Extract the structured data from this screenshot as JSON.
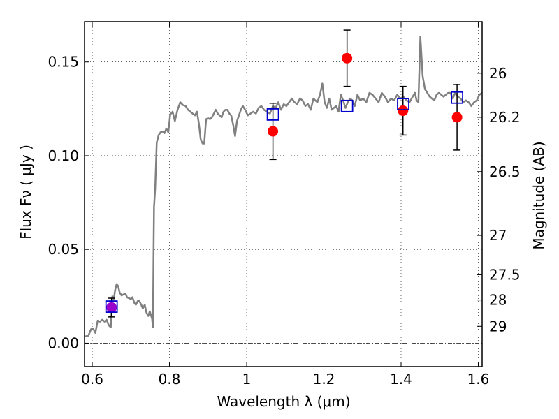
{
  "chart_data": {
    "type": "scatter",
    "title": "",
    "xlabel": "Wavelength  λ (μm)",
    "ylabel": "Flux  Fν  ( μJy )",
    "y2label": "Magnitude (AB)",
    "xlim": [
      0.58,
      1.61
    ],
    "ylim": [
      -0.0125,
      0.1715
    ],
    "grid": true,
    "x_ticks": [
      0.6,
      0.8,
      1.0,
      1.2,
      1.4,
      1.6
    ],
    "x_tick_labels": [
      "0.6",
      "0.8",
      "1",
      "1.2",
      "1.4",
      "1.6"
    ],
    "y_ticks": [
      0.0,
      0.05,
      0.1,
      0.15
    ],
    "y_tick_labels": [
      "0.00",
      "0.05",
      "0.10",
      "0.15"
    ],
    "y2_tick_labels": [
      "26",
      "26.2",
      "26.5",
      "27",
      "27.5",
      "28",
      "29"
    ],
    "colors": {
      "spectrum": "#808080",
      "observed": "#ff0000",
      "model": "#0000cc",
      "errorbar": "#000000",
      "purple": "#9900cc"
    },
    "spectrum": {
      "x": [
        0.58,
        0.59,
        0.597,
        0.603,
        0.608,
        0.614,
        0.62,
        0.626,
        0.632,
        0.637,
        0.643,
        0.648,
        0.652,
        0.656,
        0.659,
        0.663,
        0.667,
        0.671,
        0.676,
        0.681,
        0.686,
        0.69,
        0.695,
        0.7,
        0.704,
        0.709,
        0.713,
        0.718,
        0.722,
        0.727,
        0.731,
        0.736,
        0.74,
        0.745,
        0.749,
        0.752,
        0.755,
        0.757,
        0.76,
        0.763,
        0.767,
        0.772,
        0.777,
        0.782,
        0.787,
        0.792,
        0.797,
        0.802,
        0.808,
        0.814,
        0.821,
        0.828,
        0.835,
        0.842,
        0.848,
        0.854,
        0.86,
        0.866,
        0.871,
        0.876,
        0.881,
        0.886,
        0.89,
        0.895,
        0.9,
        0.905,
        0.91,
        0.915,
        0.92,
        0.925,
        0.93,
        0.935,
        0.94,
        0.945,
        0.95,
        0.955,
        0.96,
        0.965,
        0.97,
        0.975,
        0.98,
        0.985,
        0.99,
        0.996,
        1.003,
        1.01,
        1.017,
        1.024,
        1.031,
        1.038,
        1.045,
        1.052,
        1.06,
        1.068,
        1.075,
        1.082,
        1.089,
        1.096,
        1.103,
        1.11,
        1.117,
        1.124,
        1.131,
        1.138,
        1.145,
        1.152,
        1.159,
        1.166,
        1.173,
        1.178,
        1.183,
        1.19,
        1.196,
        1.202,
        1.208,
        1.214,
        1.22,
        1.226,
        1.232,
        1.238,
        1.244,
        1.25,
        1.256,
        1.262,
        1.268,
        1.274,
        1.28,
        1.287,
        1.294,
        1.302,
        1.31,
        1.318,
        1.326,
        1.334,
        1.342,
        1.35,
        1.358,
        1.366,
        1.374,
        1.382,
        1.39,
        1.398,
        1.406,
        1.414,
        1.422,
        1.43,
        1.436,
        1.44,
        1.445,
        1.45,
        1.456,
        1.462,
        1.468,
        1.474,
        1.48,
        1.486,
        1.492,
        1.498,
        1.504,
        1.51,
        1.516,
        1.522,
        1.528,
        1.534,
        1.54,
        1.547,
        1.554,
        1.561,
        1.568,
        1.575,
        1.582,
        1.589,
        1.596,
        1.603,
        1.61
      ],
      "y": [
        0.0035,
        0.004,
        0.0075,
        0.0075,
        0.0055,
        0.012,
        0.0115,
        0.0125,
        0.0115,
        0.0125,
        0.0095,
        0.0085,
        0.025,
        0.0235,
        0.028,
        0.0315,
        0.0305,
        0.027,
        0.0255,
        0.026,
        0.0265,
        0.0245,
        0.024,
        0.0235,
        0.0245,
        0.0215,
        0.0205,
        0.0225,
        0.0225,
        0.0205,
        0.0185,
        0.0205,
        0.0165,
        0.0145,
        0.017,
        0.015,
        0.013,
        0.0085,
        0.0725,
        0.0825,
        0.107,
        0.111,
        0.1125,
        0.113,
        0.112,
        0.1145,
        0.1125,
        0.122,
        0.1235,
        0.1185,
        0.1245,
        0.1285,
        0.127,
        0.1265,
        0.1245,
        0.1235,
        0.1225,
        0.1215,
        0.1235,
        0.1175,
        0.1085,
        0.1065,
        0.1065,
        0.1195,
        0.12,
        0.1195,
        0.1205,
        0.1225,
        0.1245,
        0.1225,
        0.1215,
        0.1205,
        0.1235,
        0.1245,
        0.1245,
        0.1225,
        0.1215,
        0.1165,
        0.1105,
        0.1185,
        0.1215,
        0.1245,
        0.1265,
        0.1245,
        0.1215,
        0.1225,
        0.1235,
        0.1225,
        0.1255,
        0.1265,
        0.1245,
        0.1235,
        0.1225,
        0.1265,
        0.1255,
        0.1285,
        0.1245,
        0.1275,
        0.1265,
        0.1285,
        0.1305,
        0.1285,
        0.1275,
        0.1305,
        0.1295,
        0.1265,
        0.1275,
        0.1245,
        0.1305,
        0.1295,
        0.1285,
        0.1325,
        0.1385,
        0.1285,
        0.1255,
        0.1305,
        0.1245,
        0.1255,
        0.1265,
        0.1235,
        0.1325,
        0.1295,
        0.1255,
        0.1285,
        0.1305,
        0.1295,
        0.1265,
        0.1325,
        0.1295,
        0.1305,
        0.1285,
        0.1335,
        0.1325,
        0.1305,
        0.1285,
        0.1335,
        0.1315,
        0.1285,
        0.1305,
        0.1295,
        0.1325,
        0.1305,
        0.1315,
        0.1295,
        0.1285,
        0.1315,
        0.1335,
        0.1295,
        0.1285,
        0.1635,
        0.1425,
        0.1355,
        0.1335,
        0.1315,
        0.1305,
        0.1295,
        0.1325,
        0.1335,
        0.1325,
        0.1315,
        0.1325,
        0.1335,
        0.1335,
        0.1305,
        0.1335,
        0.1315,
        0.1305,
        0.1285,
        0.1295,
        0.1285,
        0.1265,
        0.1285,
        0.1295,
        0.1325,
        0.1335
      ]
    },
    "observed_points": [
      {
        "x": 0.65,
        "y": 0.019,
        "err": 0.005
      },
      {
        "x": 1.068,
        "y": 0.113,
        "err": 0.015
      },
      {
        "x": 1.26,
        "y": 0.152,
        "err": 0.015
      },
      {
        "x": 1.405,
        "y": 0.124,
        "err": 0.013
      },
      {
        "x": 1.545,
        "y": 0.1205,
        "err": 0.0175
      }
    ],
    "model_points": [
      {
        "x": 0.65,
        "y": 0.0195
      },
      {
        "x": 1.068,
        "y": 0.122
      },
      {
        "x": 1.26,
        "y": 0.1265
      },
      {
        "x": 1.4055,
        "y": 0.1275
      },
      {
        "x": 1.545,
        "y": 0.131
      }
    ],
    "y2_ticks": [
      {
        "label": "26",
        "flux": 0.144
      },
      {
        "label": "26.2",
        "flux": 0.1205
      },
      {
        "label": "26.5",
        "flux": 0.0915
      },
      {
        "label": "27",
        "flux": 0.0575
      },
      {
        "label": "27.5",
        "flux": 0.0365
      },
      {
        "label": "28",
        "flux": 0.023
      },
      {
        "label": "29",
        "flux": 0.009
      }
    ]
  }
}
